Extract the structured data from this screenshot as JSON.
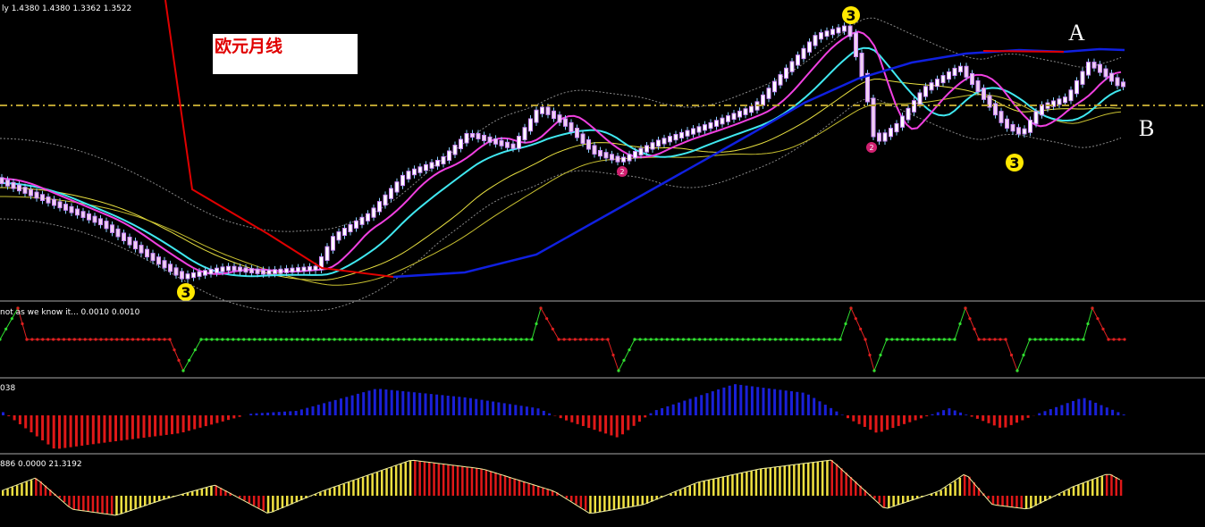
{
  "header": {
    "main": "ly  1.4380 1.4380 1.3362 1.3522",
    "title": "欧元月线"
  },
  "annotations": {
    "a": "A",
    "b": "B"
  },
  "markers": [
    "3",
    "3",
    "3",
    "2",
    "2"
  ],
  "panels": [
    {
      "label": "not as we know it...  0.0010 0.0010"
    },
    {
      "label": "038"
    },
    {
      "label": "886  0.0000 21.3192"
    }
  ]
}
